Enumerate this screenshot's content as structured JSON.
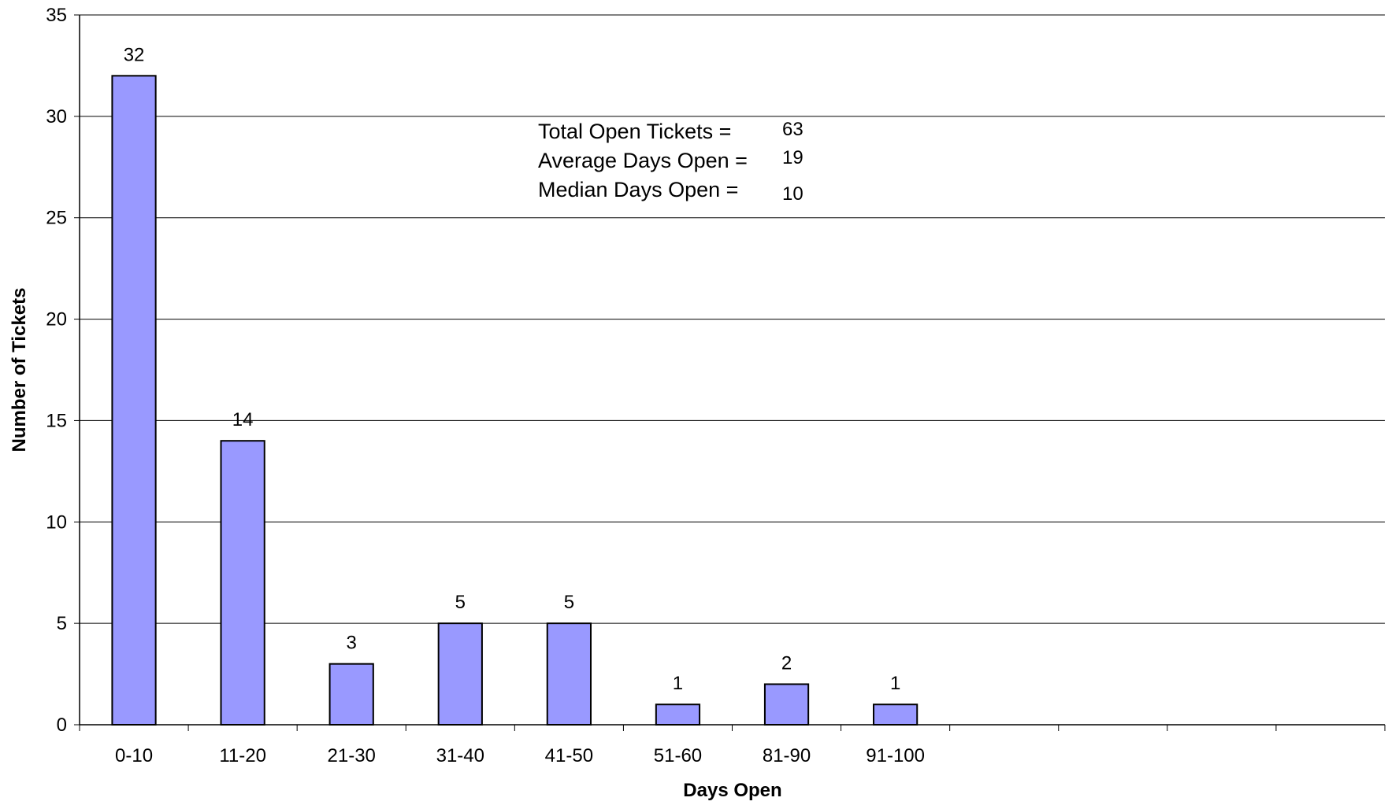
{
  "chart_data": {
    "type": "bar",
    "categories": [
      "0-10",
      "11-20",
      "21-30",
      "31-40",
      "41-50",
      "51-60",
      "81-90",
      "91-100",
      "",
      "",
      "",
      ""
    ],
    "values": [
      32,
      14,
      3,
      5,
      5,
      1,
      2,
      1,
      null,
      null,
      null,
      null
    ],
    "xlabel": "Days Open",
    "ylabel": "Number of Tickets",
    "ylim": [
      0,
      35
    ],
    "yticks": [
      0,
      5,
      10,
      15,
      20,
      25,
      30,
      35
    ],
    "grid": true,
    "bar_color": "#9999ff",
    "bar_edge_color": "#000000",
    "gridline_color": "#000000",
    "annotations": [
      {
        "label": "Total Open Tickets =",
        "value": "63"
      },
      {
        "label": "Average Days Open =",
        "value": "19"
      },
      {
        "label": "Median Days Open =",
        "value": "10"
      }
    ]
  }
}
